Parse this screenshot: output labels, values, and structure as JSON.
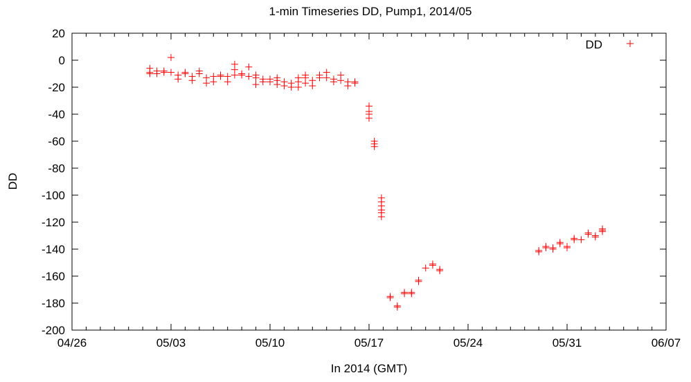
{
  "chart_data": {
    "type": "scatter",
    "title": "1-min Timeseries DD, Pump1, 2014/05",
    "xlabel": "In 2014 (GMT)",
    "ylabel": "DD",
    "xlim": [
      "2014-04-26",
      "2014-06-07"
    ],
    "ylim": [
      -200,
      20
    ],
    "x_ticks": [
      "04/26",
      "05/03",
      "05/10",
      "05/17",
      "05/24",
      "05/31",
      "06/07"
    ],
    "y_ticks": [
      20,
      0,
      -20,
      -40,
      -60,
      -80,
      -100,
      -120,
      -140,
      -160,
      -180,
      -200
    ],
    "grid": false,
    "legend": {
      "position": "top-right",
      "entries": [
        "DD"
      ]
    },
    "series": [
      {
        "name": "DD",
        "color": "#ff0000",
        "marker": "plus",
        "points": [
          [
            "2014-05-01 12:00",
            -9
          ],
          [
            "2014-05-01 12:00",
            -6
          ],
          [
            "2014-05-01 12:00",
            -10
          ],
          [
            "2014-05-02 00:00",
            -10
          ],
          [
            "2014-05-02 00:00",
            -8
          ],
          [
            "2014-05-02 12:00",
            -9
          ],
          [
            "2014-05-02 12:00",
            -8
          ],
          [
            "2014-05-03 00:00",
            -9
          ],
          [
            "2014-05-03 00:00",
            2
          ],
          [
            "2014-05-03 12:00",
            -11
          ],
          [
            "2014-05-03 12:00",
            -14
          ],
          [
            "2014-05-04 00:00",
            -10
          ],
          [
            "2014-05-04 00:00",
            -9
          ],
          [
            "2014-05-04 12:00",
            -12
          ],
          [
            "2014-05-04 12:00",
            -15
          ],
          [
            "2014-05-05 00:00",
            -10
          ],
          [
            "2014-05-05 00:00",
            -8
          ],
          [
            "2014-05-05 12:00",
            -13
          ],
          [
            "2014-05-05 12:00",
            -17
          ],
          [
            "2014-05-06 00:00",
            -12
          ],
          [
            "2014-05-06 00:00",
            -16
          ],
          [
            "2014-05-06 12:00",
            -11
          ],
          [
            "2014-05-06 12:00",
            -12
          ],
          [
            "2014-05-07 00:00",
            -12
          ],
          [
            "2014-05-07 00:00",
            -16
          ],
          [
            "2014-05-07 12:00",
            -11
          ],
          [
            "2014-05-07 12:00",
            -3
          ],
          [
            "2014-05-07 12:00",
            -7
          ],
          [
            "2014-05-08 00:00",
            -11
          ],
          [
            "2014-05-08 00:00",
            -10
          ],
          [
            "2014-05-08 12:00",
            -12
          ],
          [
            "2014-05-08 12:00",
            -5
          ],
          [
            "2014-05-09 00:00",
            -13
          ],
          [
            "2014-05-09 00:00",
            -18
          ],
          [
            "2014-05-09 00:00",
            -11
          ],
          [
            "2014-05-09 12:00",
            -14
          ],
          [
            "2014-05-09 12:00",
            -16
          ],
          [
            "2014-05-10 00:00",
            -14
          ],
          [
            "2014-05-10 00:00",
            -16
          ],
          [
            "2014-05-10 12:00",
            -15
          ],
          [
            "2014-05-10 12:00",
            -18
          ],
          [
            "2014-05-10 12:00",
            -13
          ],
          [
            "2014-05-11 00:00",
            -16
          ],
          [
            "2014-05-11 00:00",
            -19
          ],
          [
            "2014-05-11 12:00",
            -17
          ],
          [
            "2014-05-11 12:00",
            -20
          ],
          [
            "2014-05-12 00:00",
            -16
          ],
          [
            "2014-05-12 00:00",
            -20
          ],
          [
            "2014-05-12 00:00",
            -13
          ],
          [
            "2014-05-12 12:00",
            -13
          ],
          [
            "2014-05-12 12:00",
            -17
          ],
          [
            "2014-05-12 12:00",
            -11
          ],
          [
            "2014-05-13 00:00",
            -15
          ],
          [
            "2014-05-13 00:00",
            -19
          ],
          [
            "2014-05-13 12:00",
            -13
          ],
          [
            "2014-05-13 12:00",
            -11
          ],
          [
            "2014-05-14 00:00",
            -13
          ],
          [
            "2014-05-14 00:00",
            -9
          ],
          [
            "2014-05-14 12:00",
            -14
          ],
          [
            "2014-05-14 12:00",
            -16
          ],
          [
            "2014-05-15 00:00",
            -15
          ],
          [
            "2014-05-15 00:00",
            -11
          ],
          [
            "2014-05-15 12:00",
            -16
          ],
          [
            "2014-05-15 12:00",
            -19
          ],
          [
            "2014-05-16 00:00",
            -17
          ],
          [
            "2014-05-16 00:00",
            -16
          ],
          [
            "2014-05-17 00:00",
            -34
          ],
          [
            "2014-05-17 00:00",
            -38
          ],
          [
            "2014-05-17 00:00",
            -40
          ],
          [
            "2014-05-17 00:00",
            -43
          ],
          [
            "2014-05-17 09:00",
            -60
          ],
          [
            "2014-05-17 09:00",
            -62
          ],
          [
            "2014-05-17 09:00",
            -64
          ],
          [
            "2014-05-17 21:00",
            -102
          ],
          [
            "2014-05-17 21:00",
            -105
          ],
          [
            "2014-05-17 21:00",
            -108
          ],
          [
            "2014-05-17 21:00",
            -111
          ],
          [
            "2014-05-17 21:00",
            -113
          ],
          [
            "2014-05-17 21:00",
            -116
          ],
          [
            "2014-05-18 12:00",
            -175
          ],
          [
            "2014-05-18 12:00",
            -176
          ],
          [
            "2014-05-19 00:00",
            -182
          ],
          [
            "2014-05-19 00:00",
            -183
          ],
          [
            "2014-05-19 12:00",
            -172
          ],
          [
            "2014-05-19 12:00",
            -173
          ],
          [
            "2014-05-20 00:00",
            -172
          ],
          [
            "2014-05-20 00:00",
            -173
          ],
          [
            "2014-05-20 12:00",
            -163
          ],
          [
            "2014-05-20 12:00",
            -164
          ],
          [
            "2014-05-21 00:00",
            -154
          ],
          [
            "2014-05-21 12:00",
            -151
          ],
          [
            "2014-05-21 12:00",
            -152
          ],
          [
            "2014-05-22 00:00",
            -155
          ],
          [
            "2014-05-22 00:00",
            -156
          ],
          [
            "2014-05-29 00:00",
            -141
          ],
          [
            "2014-05-29 00:00",
            -142
          ],
          [
            "2014-05-29 12:00",
            -139
          ],
          [
            "2014-05-29 12:00",
            -138
          ],
          [
            "2014-05-30 00:00",
            -139
          ],
          [
            "2014-05-30 00:00",
            -140
          ],
          [
            "2014-05-30 12:00",
            -136
          ],
          [
            "2014-05-30 12:00",
            -135
          ],
          [
            "2014-05-31 00:00",
            -138
          ],
          [
            "2014-05-31 00:00",
            -139
          ],
          [
            "2014-05-31 12:00",
            -132
          ],
          [
            "2014-05-31 12:00",
            -133
          ],
          [
            "2014-06-01 00:00",
            -133
          ],
          [
            "2014-06-01 12:00",
            -128
          ],
          [
            "2014-06-01 12:00",
            -129
          ],
          [
            "2014-06-02 00:00",
            -130
          ],
          [
            "2014-06-02 00:00",
            -131
          ],
          [
            "2014-06-02 12:00",
            -126
          ],
          [
            "2014-06-02 12:00",
            -127
          ],
          [
            "2014-06-02 12:00",
            -125
          ]
        ]
      }
    ]
  }
}
